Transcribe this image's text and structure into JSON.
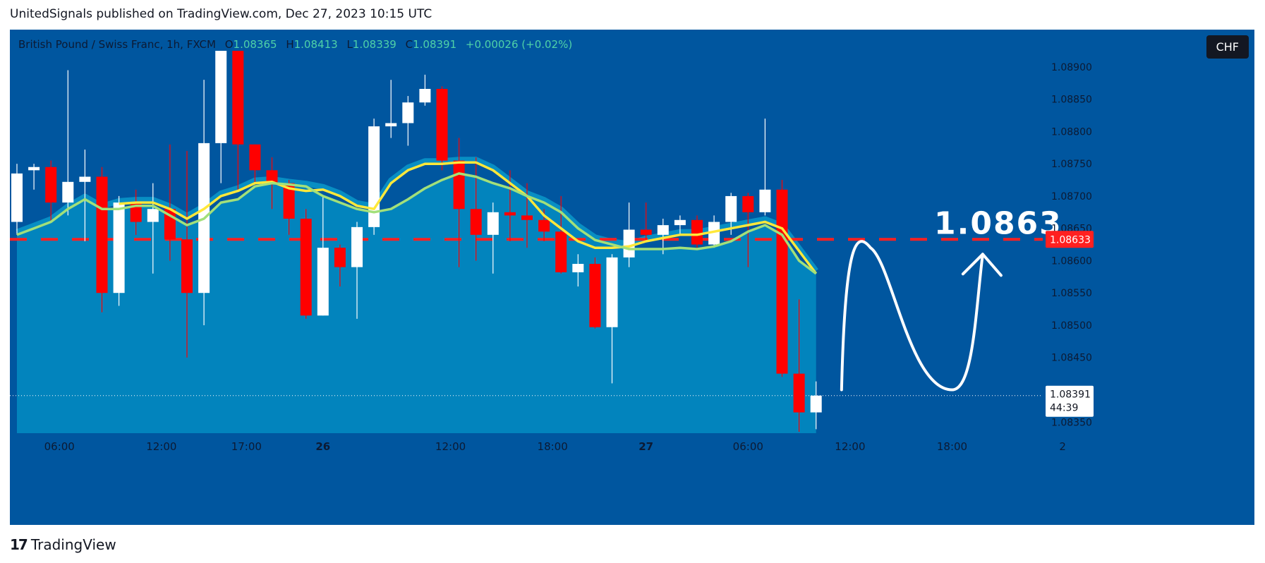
{
  "header": {
    "author": "UnitedSignals",
    "published_text": "published on TradingView.com, Dec 27, 2023 10:15 UTC"
  },
  "legend": {
    "symbol": "British Pound / Swiss Franc, 1h, FXCM",
    "open_key": "O",
    "open": "1.08365",
    "high_key": "H",
    "high": "1.08413",
    "low_key": "L",
    "low": "1.08339",
    "close_key": "C",
    "close": "1.08391",
    "change": "+0.00026 (+0.02%)"
  },
  "currency_badge": "CHF",
  "target_label": "1.0863",
  "footer": {
    "brand": "TradingView",
    "logo": "17"
  },
  "colors": {
    "background": "#00569f",
    "area_fill": "#0284bd",
    "up_candle": "#ffffff",
    "down_candle": "#ff0000",
    "ma_fast": "#a2e07a",
    "ma_slow": "#ffe83a",
    "target_line": "#ff2020"
  },
  "chart_data": {
    "type": "candlestick",
    "y_axis": {
      "ticks": [
        "1.08900",
        "1.08850",
        "1.08800",
        "1.08750",
        "1.08700",
        "1.08650",
        "1.08600",
        "1.08550",
        "1.08500",
        "1.08450",
        "1.08400",
        "1.08350"
      ],
      "ylim": [
        1.08335,
        1.08925
      ]
    },
    "x_axis": {
      "ticks": [
        "06:00",
        "12:00",
        "17:00",
        "26",
        "12:00",
        "18:00",
        "27",
        "06:00",
        "12:00",
        "18:00",
        "2"
      ],
      "tick_index": [
        2.5,
        8.5,
        13.5,
        18,
        25.5,
        31.5,
        37,
        43,
        49,
        55,
        61.5
      ]
    },
    "price_labels": {
      "target_value": "1.08633",
      "current_value": "1.08391",
      "countdown": "44:39"
    },
    "target_level": 1.08633,
    "current_level": 1.08391,
    "candles": [
      {
        "o": 1.0866,
        "h": 1.0875,
        "l": 1.0864,
        "c": 1.08735
      },
      {
        "o": 1.0874,
        "h": 1.0875,
        "l": 1.0871,
        "c": 1.08745
      },
      {
        "o": 1.08745,
        "h": 1.08755,
        "l": 1.0866,
        "c": 1.0869
      },
      {
        "o": 1.0869,
        "h": 1.08895,
        "l": 1.0867,
        "c": 1.08722
      },
      {
        "o": 1.08722,
        "h": 1.08772,
        "l": 1.0863,
        "c": 1.0873
      },
      {
        "o": 1.0873,
        "h": 1.08745,
        "l": 1.0852,
        "c": 1.0855
      },
      {
        "o": 1.0855,
        "h": 1.087,
        "l": 1.0853,
        "c": 1.0869
      },
      {
        "o": 1.0869,
        "h": 1.0871,
        "l": 1.0864,
        "c": 1.0866
      },
      {
        "o": 1.0866,
        "h": 1.0872,
        "l": 1.0858,
        "c": 1.0868
      },
      {
        "o": 1.0868,
        "h": 1.0878,
        "l": 1.086,
        "c": 1.08633
      },
      {
        "o": 1.08633,
        "h": 1.0877,
        "l": 1.0845,
        "c": 1.0855
      },
      {
        "o": 1.0855,
        "h": 1.0888,
        "l": 1.085,
        "c": 1.08782
      },
      {
        "o": 1.08782,
        "h": 1.08925,
        "l": 1.0872,
        "c": 1.08925
      },
      {
        "o": 1.08925,
        "h": 1.08925,
        "l": 1.0871,
        "c": 1.0878
      },
      {
        "o": 1.0878,
        "h": 1.0878,
        "l": 1.0872,
        "c": 1.0874
      },
      {
        "o": 1.0874,
        "h": 1.0876,
        "l": 1.0868,
        "c": 1.0872
      },
      {
        "o": 1.0872,
        "h": 1.08725,
        "l": 1.0864,
        "c": 1.08665
      },
      {
        "o": 1.08665,
        "h": 1.0868,
        "l": 1.0851,
        "c": 1.08515
      },
      {
        "o": 1.08515,
        "h": 1.087,
        "l": 1.08515,
        "c": 1.0862
      },
      {
        "o": 1.0862,
        "h": 1.08625,
        "l": 1.0856,
        "c": 1.0859
      },
      {
        "o": 1.0859,
        "h": 1.0866,
        "l": 1.0851,
        "c": 1.08652
      },
      {
        "o": 1.08652,
        "h": 1.0882,
        "l": 1.0864,
        "c": 1.08808
      },
      {
        "o": 1.08808,
        "h": 1.0888,
        "l": 1.0879,
        "c": 1.08813
      },
      {
        "o": 1.08813,
        "h": 1.08855,
        "l": 1.08778,
        "c": 1.08845
      },
      {
        "o": 1.08845,
        "h": 1.08888,
        "l": 1.0884,
        "c": 1.08866
      },
      {
        "o": 1.08866,
        "h": 1.0887,
        "l": 1.0874,
        "c": 1.08755
      },
      {
        "o": 1.08755,
        "h": 1.0879,
        "l": 1.0859,
        "c": 1.0868
      },
      {
        "o": 1.0868,
        "h": 1.0876,
        "l": 1.086,
        "c": 1.0864
      },
      {
        "o": 1.0864,
        "h": 1.0869,
        "l": 1.0858,
        "c": 1.08675
      },
      {
        "o": 1.08675,
        "h": 1.0874,
        "l": 1.0863,
        "c": 1.0867
      },
      {
        "o": 1.0867,
        "h": 1.0872,
        "l": 1.0862,
        "c": 1.08663
      },
      {
        "o": 1.08663,
        "h": 1.0868,
        "l": 1.0863,
        "c": 1.08645
      },
      {
        "o": 1.08645,
        "h": 1.087,
        "l": 1.0858,
        "c": 1.08582
      },
      {
        "o": 1.08582,
        "h": 1.0861,
        "l": 1.0856,
        "c": 1.08595
      },
      {
        "o": 1.08595,
        "h": 1.08605,
        "l": 1.08495,
        "c": 1.08497
      },
      {
        "o": 1.08497,
        "h": 1.0861,
        "l": 1.0841,
        "c": 1.08605
      },
      {
        "o": 1.08605,
        "h": 1.0869,
        "l": 1.0859,
        "c": 1.08648
      },
      {
        "o": 1.08648,
        "h": 1.0869,
        "l": 1.0863,
        "c": 1.0864
      },
      {
        "o": 1.0864,
        "h": 1.08665,
        "l": 1.0861,
        "c": 1.08655
      },
      {
        "o": 1.08655,
        "h": 1.0867,
        "l": 1.0864,
        "c": 1.08663
      },
      {
        "o": 1.08663,
        "h": 1.0867,
        "l": 1.0862,
        "c": 1.08625
      },
      {
        "o": 1.08625,
        "h": 1.0867,
        "l": 1.0862,
        "c": 1.0866
      },
      {
        "o": 1.0866,
        "h": 1.08705,
        "l": 1.0864,
        "c": 1.087
      },
      {
        "o": 1.087,
        "h": 1.08705,
        "l": 1.0859,
        "c": 1.08675
      },
      {
        "o": 1.08675,
        "h": 1.0882,
        "l": 1.0867,
        "c": 1.0871
      },
      {
        "o": 1.0871,
        "h": 1.08725,
        "l": 1.0842,
        "c": 1.08425
      },
      {
        "o": 1.08425,
        "h": 1.0854,
        "l": 1.08335,
        "c": 1.08365
      },
      {
        "o": 1.08365,
        "h": 1.08413,
        "l": 1.08339,
        "c": 1.08391
      }
    ],
    "ma_fast": [
      1.0864,
      1.0865,
      1.0866,
      1.0868,
      1.08695,
      1.0868,
      1.0868,
      1.08685,
      1.08685,
      1.0867,
      1.08655,
      1.08665,
      1.0869,
      1.08695,
      1.08715,
      1.0872,
      1.08718,
      1.08715,
      1.087,
      1.0869,
      1.0868,
      1.08675,
      1.0868,
      1.08695,
      1.08712,
      1.08725,
      1.08735,
      1.0873,
      1.0872,
      1.08712,
      1.087,
      1.0869,
      1.08675,
      1.0865,
      1.08632,
      1.08625,
      1.08618,
      1.08618,
      1.08618,
      1.0862,
      1.08618,
      1.08622,
      1.0863,
      1.08645,
      1.08655,
      1.0864,
      1.086,
      1.0858
    ],
    "ma_slow": [
      null,
      null,
      null,
      null,
      null,
      null,
      1.08688,
      1.0869,
      1.0869,
      1.0868,
      1.08665,
      1.0868,
      1.087,
      1.08708,
      1.0872,
      1.08722,
      1.08712,
      1.08708,
      1.0871,
      1.087,
      1.08685,
      1.0868,
      1.0872,
      1.0874,
      1.0875,
      1.0875,
      1.08752,
      1.08752,
      1.0874,
      1.0872,
      1.087,
      1.0867,
      1.0865,
      1.0863,
      1.0862,
      1.0862,
      1.08622,
      1.0863,
      1.08635,
      1.0864,
      1.0864,
      1.08645,
      1.0865,
      1.08655,
      1.0866,
      1.0865,
      1.08615,
      1.0858
    ],
    "projection_path": [
      {
        "bar": 48.5,
        "price": 1.084
      },
      {
        "bar": 50.2,
        "price": 1.0862
      },
      {
        "bar": 55.0,
        "price": 1.084
      },
      {
        "bar": 56.8,
        "price": 1.0861
      }
    ]
  }
}
